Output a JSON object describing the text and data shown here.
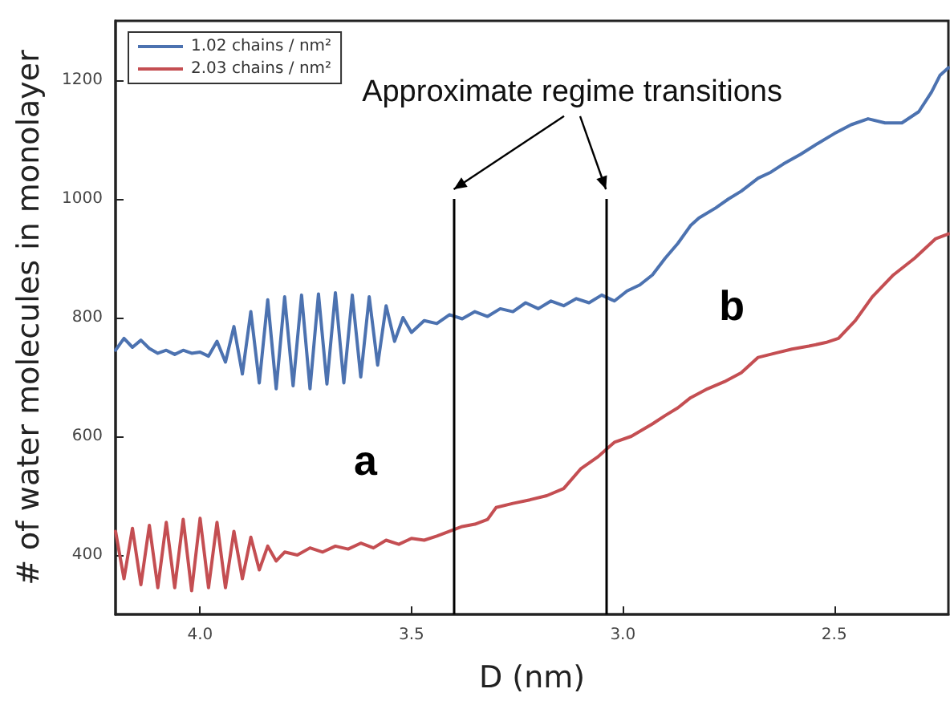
{
  "chart_data": {
    "type": "line",
    "xlabel": "D (nm)",
    "ylabel": "# of water molecules in monolayer",
    "xlim": [
      4.2,
      2.23
    ],
    "ylim": [
      300,
      1300
    ],
    "xticks": [
      {
        "value": 4,
        "label": "4.0"
      },
      {
        "value": 3.5,
        "label": "3.5"
      },
      {
        "value": 3,
        "label": "3.0"
      },
      {
        "value": 2.5,
        "label": "2.5"
      }
    ],
    "yticks": [
      400,
      600,
      800,
      1000,
      1200
    ],
    "grid": false,
    "legend": "top left",
    "marker": "none",
    "line_style": "solid",
    "series": [
      {
        "name": "1.02 chains / nm²",
        "color": "#4c72b0",
        "x": [
          4.2,
          4.18,
          4.16,
          4.14,
          4.12,
          4.1,
          4.08,
          4.06,
          4.04,
          4.02,
          4.0,
          3.98,
          3.96,
          3.94,
          3.92,
          3.9,
          3.88,
          3.86,
          3.84,
          3.82,
          3.8,
          3.78,
          3.76,
          3.74,
          3.72,
          3.7,
          3.68,
          3.66,
          3.64,
          3.62,
          3.6,
          3.58,
          3.56,
          3.54,
          3.52,
          3.5,
          3.47,
          3.44,
          3.41,
          3.38,
          3.35,
          3.32,
          3.29,
          3.26,
          3.23,
          3.2,
          3.17,
          3.14,
          3.11,
          3.08,
          3.05,
          3.02,
          2.99,
          2.96,
          2.93,
          2.9,
          2.87,
          2.84,
          2.82,
          2.78,
          2.75,
          2.72,
          2.68,
          2.65,
          2.62,
          2.58,
          2.54,
          2.5,
          2.46,
          2.42,
          2.38,
          2.34,
          2.3,
          2.27,
          2.25,
          2.23
        ],
        "values": [
          745,
          765,
          750,
          762,
          748,
          740,
          745,
          738,
          745,
          740,
          742,
          735,
          760,
          725,
          785,
          705,
          810,
          690,
          830,
          680,
          835,
          685,
          838,
          680,
          840,
          688,
          842,
          690,
          838,
          700,
          835,
          720,
          820,
          760,
          800,
          775,
          795,
          790,
          805,
          798,
          810,
          802,
          815,
          810,
          825,
          815,
          828,
          820,
          832,
          825,
          838,
          828,
          845,
          855,
          872,
          900,
          925,
          955,
          968,
          985,
          1000,
          1013,
          1035,
          1045,
          1059,
          1075,
          1093,
          1110,
          1125,
          1135,
          1128,
          1128,
          1147,
          1180,
          1208,
          1221
        ]
      },
      {
        "name": "2.03 chains / nm²",
        "color": "#c44e52",
        "x": [
          4.2,
          4.18,
          4.16,
          4.14,
          4.12,
          4.1,
          4.08,
          4.06,
          4.04,
          4.02,
          4.0,
          3.98,
          3.96,
          3.94,
          3.92,
          3.9,
          3.88,
          3.86,
          3.84,
          3.82,
          3.8,
          3.77,
          3.74,
          3.71,
          3.68,
          3.65,
          3.62,
          3.59,
          3.56,
          3.53,
          3.5,
          3.47,
          3.44,
          3.41,
          3.38,
          3.35,
          3.32,
          3.3,
          3.26,
          3.22,
          3.18,
          3.14,
          3.1,
          3.06,
          3.02,
          2.98,
          2.93,
          2.9,
          2.87,
          2.84,
          2.8,
          2.76,
          2.72,
          2.68,
          2.64,
          2.6,
          2.56,
          2.52,
          2.49,
          2.45,
          2.41,
          2.36,
          2.31,
          2.26,
          2.23
        ],
        "values": [
          440,
          360,
          445,
          350,
          450,
          345,
          455,
          345,
          460,
          340,
          462,
          345,
          455,
          345,
          440,
          360,
          430,
          375,
          415,
          390,
          405,
          400,
          412,
          405,
          415,
          410,
          420,
          412,
          425,
          418,
          428,
          425,
          432,
          440,
          448,
          452,
          460,
          480,
          487,
          493,
          500,
          512,
          545,
          565,
          590,
          600,
          621,
          635,
          648,
          665,
          680,
          692,
          707,
          733,
          740,
          747,
          752,
          758,
          765,
          795,
          835,
          872,
          900,
          933,
          941
        ]
      }
    ],
    "ref_lines": [
      {
        "axis": "x",
        "value": 3.4,
        "color": "#000000"
      },
      {
        "axis": "x",
        "value": 3.04,
        "color": "#000000"
      }
    ],
    "annotations": [
      "Approximate regime transitions",
      "a",
      "b"
    ]
  }
}
